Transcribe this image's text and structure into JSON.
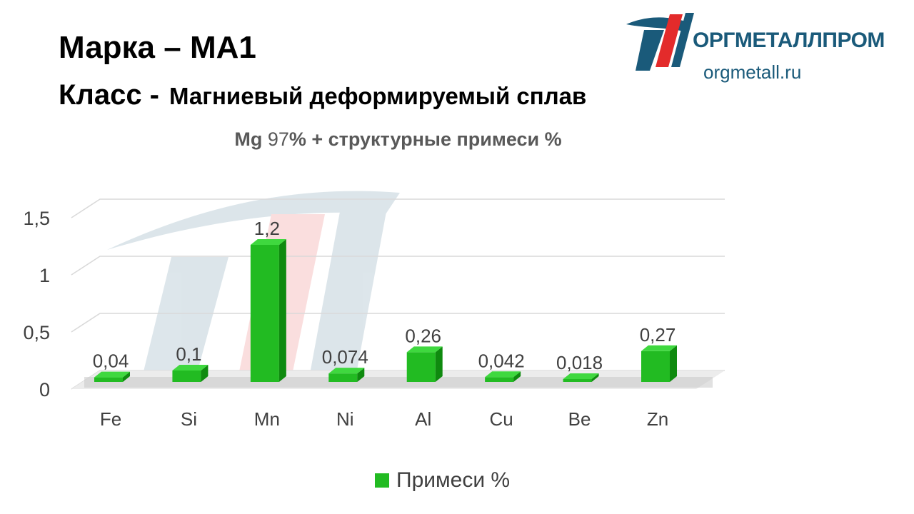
{
  "header": {
    "grade_label": "Марка",
    "grade_dash": "–",
    "grade_value": "МА1",
    "class_label": "Класс -",
    "class_value": "Магниевый деформируемый сплав"
  },
  "brand": {
    "name": "ОРГМЕТАЛЛПРОМ",
    "url": "orgmetall.ru",
    "color": "#1a5a7a",
    "accent": "#e32b2b"
  },
  "subtitle": {
    "element": "Mg",
    "percent": "97",
    "rest": "% + структурные  примеси %"
  },
  "chart_data": {
    "type": "bar",
    "categories": [
      "Fe",
      "Si",
      "Mn",
      "Ni",
      "Al",
      "Cu",
      "Be",
      "Zn"
    ],
    "series": [
      {
        "name": "Примеси %",
        "values": [
          0.04,
          0.1,
          1.2,
          0.074,
          0.26,
          0.042,
          0.018,
          0.27
        ],
        "labels": [
          "0,04",
          "0,1",
          "1,2",
          "0,074",
          "0,26",
          "0,042",
          "0,018",
          "0,27"
        ],
        "color": "#22bb22"
      }
    ],
    "ylim": [
      0,
      1.5
    ],
    "yticks": [
      0,
      0.5,
      1,
      1.5
    ],
    "ytick_labels": [
      "0",
      "0,5",
      "1",
      "1,5"
    ],
    "grid": true,
    "legend": "bottom",
    "style": "3d"
  }
}
